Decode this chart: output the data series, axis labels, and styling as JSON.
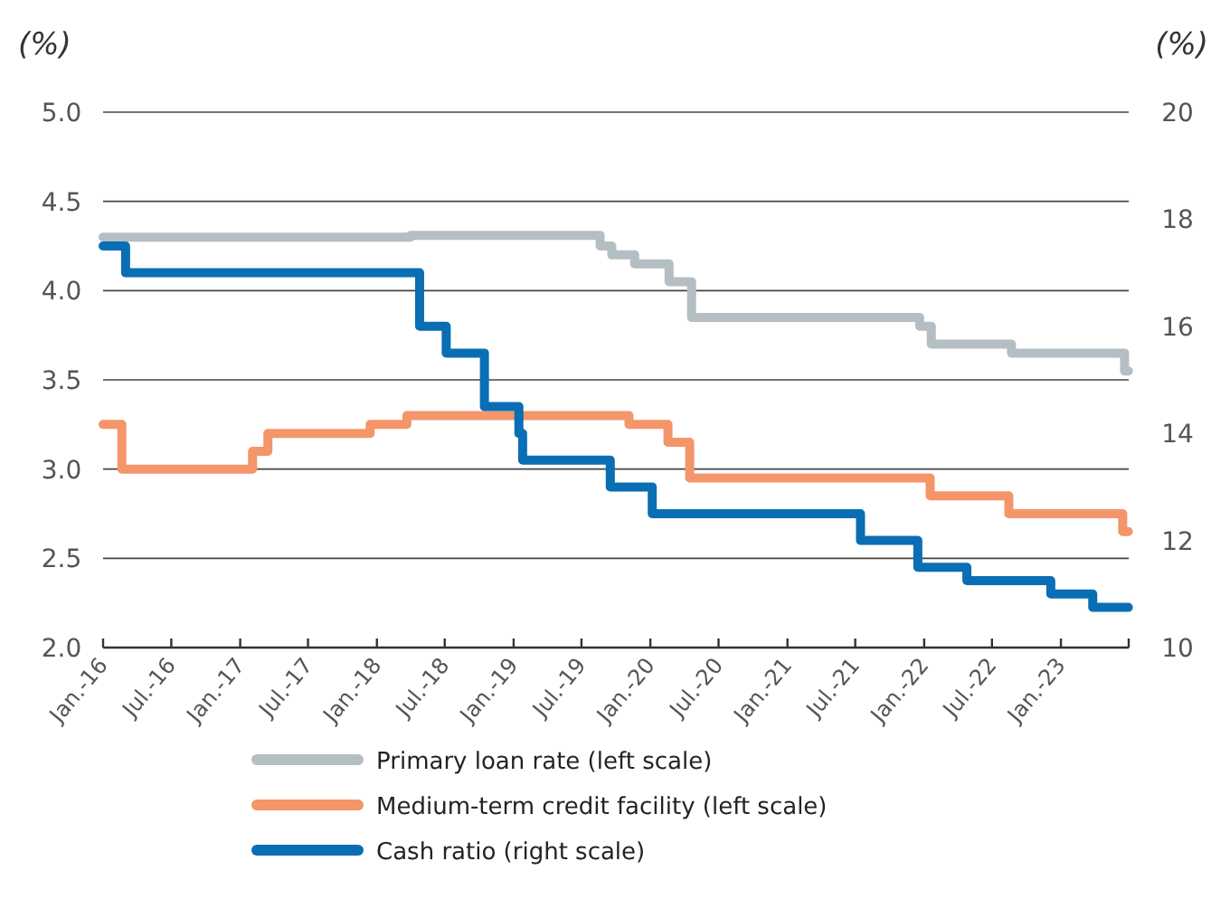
{
  "chart_data": {
    "type": "step",
    "ylabel": "(%)",
    "y2label": "(%)",
    "xlim": [
      "2016-01-01",
      "2023-07-01"
    ],
    "xticks": [
      {
        "value": "2016-01-01",
        "label": "Jan.-16"
      },
      {
        "value": "2016-07-01",
        "label": "Jul.-16"
      },
      {
        "value": "2017-01-01",
        "label": "Jan.-17"
      },
      {
        "value": "2017-07-01",
        "label": "Jul.-17"
      },
      {
        "value": "2018-01-01",
        "label": "Jan.-18"
      },
      {
        "value": "2018-07-01",
        "label": "Jul.-18"
      },
      {
        "value": "2019-01-01",
        "label": "Jan.-19"
      },
      {
        "value": "2019-07-01",
        "label": "Jul.-19"
      },
      {
        "value": "2020-01-01",
        "label": "Jan.-20"
      },
      {
        "value": "2020-07-01",
        "label": "Jul.-20"
      },
      {
        "value": "2021-01-01",
        "label": "Jan.-21"
      },
      {
        "value": "2021-07-01",
        "label": "Jul.-21"
      },
      {
        "value": "2022-01-01",
        "label": "Jan.-22"
      },
      {
        "value": "2022-07-01",
        "label": "Jul.-22"
      },
      {
        "value": "2023-01-01",
        "label": "Jan.-23"
      },
      {
        "value": "2023-07-01",
        "label": null
      }
    ],
    "ylim": [
      2.0,
      5.0
    ],
    "yticks": [
      {
        "value": 2,
        "label": "2.0"
      },
      2.5,
      {
        "value": 3,
        "label": "3.0"
      },
      3.5,
      {
        "value": 4,
        "label": "4.0"
      },
      4.5,
      {
        "value": 5,
        "label": "5.0"
      }
    ],
    "y2lim": [
      10,
      20
    ],
    "y2ticks": [
      10,
      12,
      14,
      16,
      18,
      20
    ],
    "grid": "y",
    "legend": "bottom",
    "line_style": "solid",
    "marker": "none",
    "series": [
      {
        "name": "Primary loan rate (left scale)",
        "color": "#b4bec3",
        "x": [
          "2016-01-01",
          "2018-04-01",
          "2019-08-20",
          "2019-09-20",
          "2019-11-20",
          "2020-02-20",
          "2020-04-20",
          "2021-12-20",
          "2022-01-20",
          "2022-08-22",
          "2023-06-20",
          "2023-06-30"
        ],
        "values": [
          4.3,
          4.31,
          4.25,
          4.2,
          4.15,
          4.05,
          3.85,
          3.8,
          3.7,
          3.65,
          3.55,
          3.55
        ]
      },
      {
        "name": "Medium-term credit facility (left scale)",
        "color": "#f4956a",
        "x": [
          "2016-01-01",
          "2016-02-20",
          "2017-02-03",
          "2017-03-16",
          "2017-12-14",
          "2018-03-22",
          "2019-11-05",
          "2020-02-17",
          "2020-04-15",
          "2022-01-17",
          "2022-08-15",
          "2023-06-15",
          "2023-06-30"
        ],
        "values": [
          3.25,
          3.0,
          3.1,
          3.2,
          3.25,
          3.3,
          3.25,
          3.15,
          2.95,
          2.85,
          2.75,
          2.65,
          2.65
        ]
      },
      {
        "name": "Cash ratio (right scale)",
        "color": "#0a6eb4",
        "axis": "y2",
        "x": [
          "2016-01-01",
          "2016-03-01",
          "2018-04-25",
          "2018-07-05",
          "2018-10-15",
          "2019-01-15",
          "2019-01-25",
          "2019-09-16",
          "2020-01-06",
          "2021-07-15",
          "2021-12-15",
          "2022-04-25",
          "2022-12-05",
          "2023-03-27",
          "2023-06-30"
        ],
        "values": [
          17.5,
          17.0,
          16.0,
          15.5,
          14.5,
          14.0,
          13.5,
          13.0,
          12.5,
          12.0,
          11.5,
          11.25,
          11.0,
          10.75,
          10.75
        ]
      }
    ]
  }
}
